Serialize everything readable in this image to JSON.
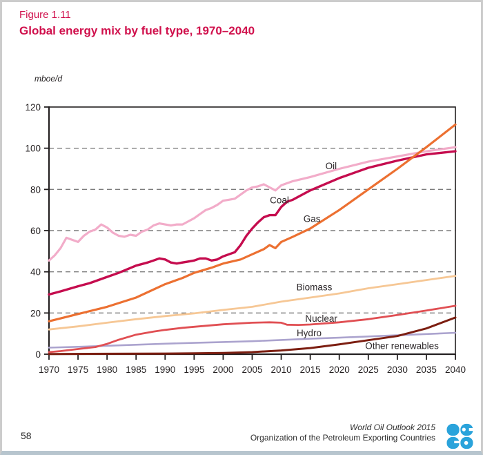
{
  "header": {
    "figure_label": "Figure 1.11",
    "title": "Global energy mix by fuel type, 1970–2040"
  },
  "footer": {
    "page_number": "58",
    "source_line1": "World Oil Outlook 2015",
    "source_line2": "Organization of the Petroleum Exporting Countries",
    "logo_icon": "opec-logo",
    "logo_color": "#2aa3db"
  },
  "colors": {
    "title_red": "#d0104c",
    "text": "#231f20",
    "grid": "#7c7c7c",
    "axis": "#231f20",
    "label_text": "#2d282a"
  },
  "chart_data": {
    "type": "line",
    "title": "Global energy mix by fuel type, 1970–2040",
    "unit": "mboe/d",
    "xlabel": "",
    "ylabel": "mboe/d",
    "xlim": [
      1970,
      2040
    ],
    "ylim": [
      0,
      120
    ],
    "x_ticks": [
      1970,
      1975,
      1980,
      1985,
      1990,
      1995,
      2000,
      2005,
      2010,
      2015,
      2020,
      2025,
      2030,
      2035,
      2040
    ],
    "y_ticks": [
      0,
      20,
      40,
      60,
      80,
      100,
      120
    ],
    "grid": "horizontal dashed lines at 20,40,60,80,100",
    "legend": "inline labels next to lines",
    "series": [
      {
        "id": "oil",
        "name": "Oil",
        "color": "#f2acc9",
        "stroke_width": 3.2,
        "label_anchor": [
          2018.6,
          91.3
        ],
        "x": [
          1970,
          1971,
          1972,
          1973,
          1974,
          1975,
          1976,
          1977,
          1978,
          1979,
          1980,
          1981,
          1982,
          1983,
          1984,
          1985,
          1986,
          1987,
          1988,
          1989,
          1990,
          1991,
          1992,
          1993,
          1994,
          1995,
          1996,
          1997,
          1998,
          1999,
          2000,
          2001,
          2002,
          2003,
          2004,
          2005,
          2006,
          2007,
          2008,
          2009,
          2010,
          2012,
          2015,
          2020,
          2025,
          2030,
          2035,
          2040
        ],
        "values": [
          45.5,
          48,
          51.5,
          56.5,
          55.5,
          54.5,
          57.5,
          59.5,
          60.5,
          63,
          61.5,
          59,
          57.5,
          57,
          58,
          57.5,
          59.5,
          60.5,
          62.5,
          63.5,
          63,
          62.5,
          63,
          63,
          64.5,
          66,
          68,
          70,
          71,
          72.5,
          74.5,
          75,
          75.5,
          77.5,
          79.5,
          81,
          81.5,
          82.5,
          81,
          79.5,
          82,
          84,
          86,
          90,
          93.5,
          96,
          98.5,
          100.5
        ]
      },
      {
        "id": "coal",
        "name": "Coal",
        "color": "#c50c4e",
        "stroke_width": 3.4,
        "label_anchor": [
          2009.7,
          74.8
        ],
        "x": [
          1970,
          1972,
          1975,
          1977,
          1980,
          1982,
          1985,
          1987,
          1988,
          1989,
          1990,
          1991,
          1992,
          1993,
          1994,
          1995,
          1996,
          1997,
          1998,
          1999,
          2000,
          2001,
          2002,
          2003,
          2004,
          2005,
          2006,
          2007,
          2008,
          2009,
          2010,
          2011,
          2012,
          2015,
          2020,
          2025,
          2030,
          2035,
          2040
        ],
        "values": [
          29,
          30.5,
          33,
          34.5,
          37.5,
          39.5,
          43,
          44.5,
          45.5,
          46.5,
          46,
          44.5,
          44,
          44.5,
          45,
          45.5,
          46.5,
          46.5,
          45.5,
          46,
          47.5,
          48.5,
          49.5,
          53,
          57.5,
          61,
          64,
          66.5,
          67.5,
          67.5,
          71.5,
          74,
          75,
          79.5,
          85.5,
          90.5,
          94,
          97,
          98.5
        ]
      },
      {
        "id": "biomass",
        "name": "Biomass",
        "color": "#f6c795",
        "stroke_width": 2.8,
        "label_anchor": [
          2015.7,
          32.5
        ],
        "x": [
          1970,
          1975,
          1980,
          1985,
          1990,
          1995,
          2000,
          2005,
          2010,
          2015,
          2020,
          2025,
          2030,
          2035,
          2040
        ],
        "values": [
          12,
          13.5,
          15.3,
          17,
          18.5,
          19.8,
          21.5,
          23,
          25.5,
          27.5,
          29.5,
          32,
          34,
          36,
          38
        ]
      },
      {
        "id": "hydro",
        "name": "Hydro",
        "color": "#aba3ce",
        "stroke_width": 2.6,
        "label_anchor": [
          2014.8,
          10.2
        ],
        "x": [
          1970,
          1975,
          1980,
          1985,
          1990,
          1995,
          2000,
          2005,
          2010,
          2015,
          2020,
          2025,
          2030,
          2035,
          2040
        ],
        "values": [
          3.2,
          3.6,
          4.1,
          4.6,
          5.1,
          5.5,
          5.9,
          6.3,
          6.9,
          7.5,
          8,
          8.6,
          9.2,
          9.8,
          10.4
        ]
      },
      {
        "id": "nuclear",
        "name": "Nuclear",
        "color": "#e04f53",
        "stroke_width": 2.8,
        "label_anchor": [
          2016.9,
          17.2
        ],
        "x": [
          1970,
          1972,
          1975,
          1978,
          1980,
          1982,
          1985,
          1988,
          1990,
          1993,
          1995,
          2000,
          2005,
          2008,
          2010,
          2011,
          2013,
          2015,
          2020,
          2025,
          2030,
          2035,
          2040
        ],
        "values": [
          1,
          1.5,
          2.5,
          3.5,
          5,
          7,
          9.5,
          11,
          11.8,
          12.8,
          13.3,
          14.5,
          15.3,
          15.5,
          15.3,
          14.3,
          14.2,
          14.4,
          15.5,
          17,
          19,
          21.2,
          23.5
        ]
      },
      {
        "id": "other_renewables",
        "name": "Other renewables",
        "color": "#7c1e11",
        "stroke_width": 3.0,
        "label_anchor": [
          2030.8,
          4.0
        ],
        "x": [
          1970,
          1980,
          1990,
          1995,
          2000,
          2005,
          2010,
          2015,
          2020,
          2025,
          2030,
          2035,
          2040
        ],
        "values": [
          0.1,
          0.2,
          0.3,
          0.4,
          0.6,
          1,
          1.8,
          3,
          4.8,
          6.8,
          8.8,
          12.5,
          17.8
        ]
      },
      {
        "id": "gas",
        "name": "Gas",
        "color": "#ec7031",
        "stroke_width": 3.2,
        "label_anchor": [
          2015.3,
          65.7
        ],
        "x": [
          1970,
          1975,
          1980,
          1985,
          1990,
          1993,
          1995,
          1998,
          2000,
          2003,
          2005,
          2007,
          2008,
          2009,
          2010,
          2012,
          2015,
          2020,
          2025,
          2030,
          2035,
          2040
        ],
        "values": [
          16,
          19.5,
          23,
          27.5,
          34,
          37,
          39.5,
          42,
          44,
          46,
          48.5,
          51,
          53,
          51.5,
          54.5,
          57,
          61,
          70,
          80,
          90,
          100.5,
          111.5
        ]
      }
    ]
  }
}
